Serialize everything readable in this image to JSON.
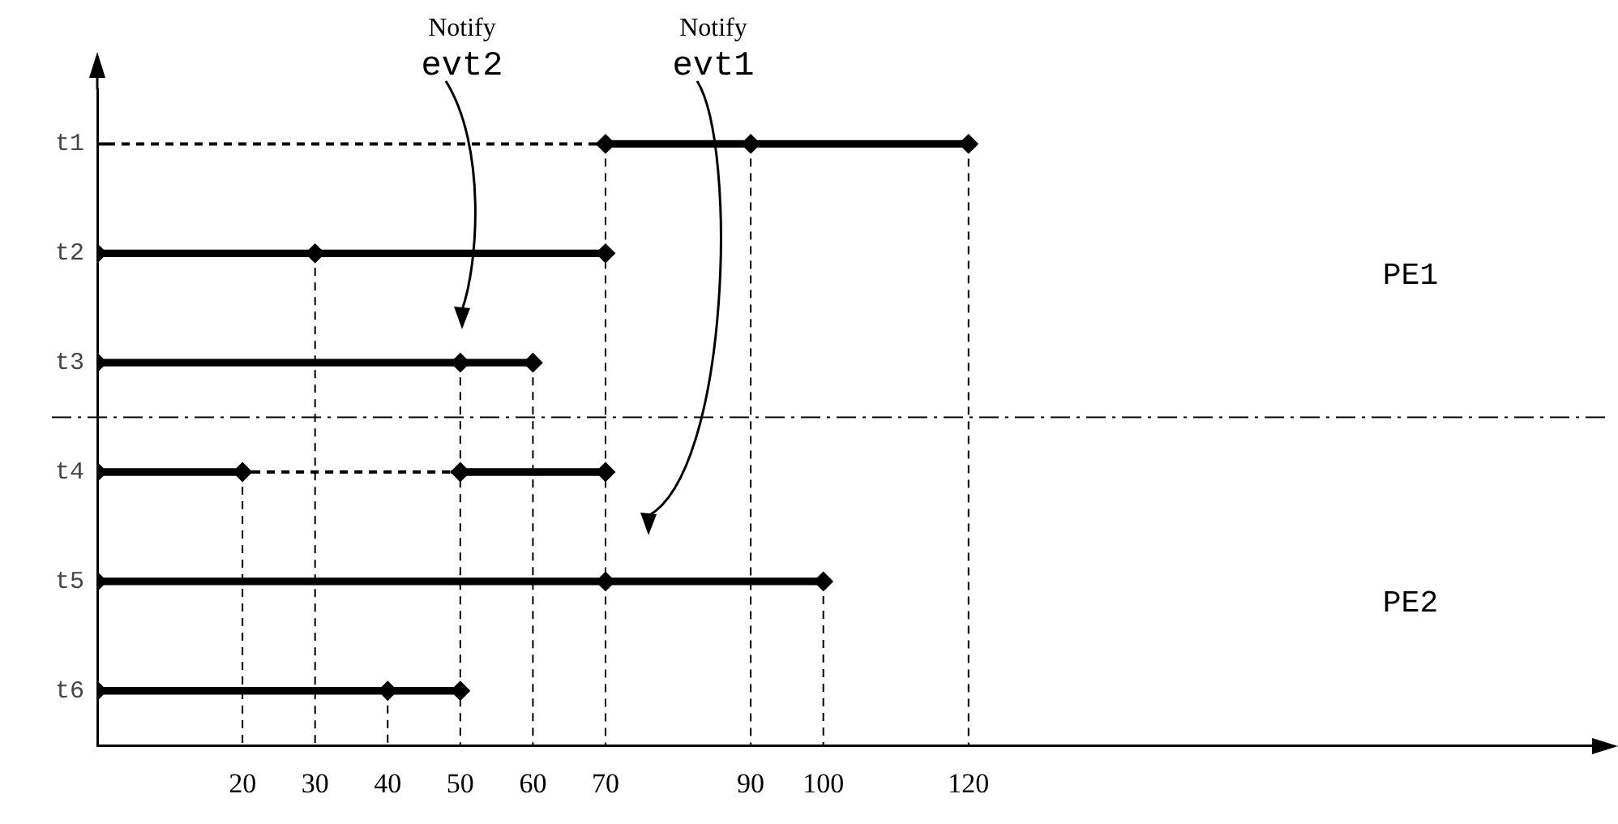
{
  "chart_data": {
    "type": "bar",
    "orientation": "horizontal",
    "categories": [
      "t1",
      "t2",
      "t3",
      "t4",
      "t5",
      "t6"
    ],
    "series": [
      {
        "type": "bar",
        "color": "#000000",
        "base": [
          70,
          0,
          0,
          0,
          0,
          0
        ],
        "values": [
          50,
          70,
          60,
          20,
          100,
          50
        ]
      },
      {
        "type": "bar",
        "color": "#000000",
        "base": [
          null,
          null,
          null,
          50,
          null,
          null
        ],
        "values": [
          null,
          null,
          null,
          20,
          null,
          null
        ]
      },
      {
        "type": "bar",
        "color": "#000000",
        "line_style": "dashed",
        "base": [
          0,
          null,
          null,
          20,
          null,
          null
        ],
        "values": [
          70,
          null,
          null,
          30,
          null,
          null
        ]
      },
      {
        "type": "scatter",
        "color": "#000000",
        "marker": "diamond",
        "values": [
          70,
          0,
          0,
          0,
          0,
          0
        ]
      },
      {
        "type": "scatter",
        "color": "#000000",
        "marker": "diamond",
        "values": [
          90,
          30,
          50,
          20,
          70,
          40
        ]
      },
      {
        "type": "scatter",
        "color": "#000000",
        "marker": "diamond",
        "values": [
          120,
          70,
          60,
          50,
          100,
          50
        ]
      },
      {
        "type": "scatter",
        "color": "#000000",
        "marker": "diamond",
        "values": [
          null,
          null,
          null,
          70,
          null,
          null
        ]
      }
    ],
    "ref_lines": [
      {
        "axis": "x",
        "value": 20,
        "line_style": "dashed"
      },
      {
        "axis": "x",
        "value": 30,
        "line_style": "dashed"
      },
      {
        "axis": "x",
        "value": 40,
        "line_style": "dashed"
      },
      {
        "axis": "x",
        "value": 50,
        "line_style": "dashed"
      },
      {
        "axis": "x",
        "value": 60,
        "line_style": "dashed"
      },
      {
        "axis": "x",
        "value": 70,
        "line_style": "dashed"
      },
      {
        "axis": "x",
        "value": 90,
        "line_style": "dashed"
      },
      {
        "axis": "x",
        "value": 100,
        "line_style": "dashed"
      },
      {
        "axis": "x",
        "value": 120,
        "line_style": "dashed"
      }
    ],
    "xlim": [
      0,
      208
    ],
    "xticks": [
      20,
      30,
      40,
      50,
      60,
      70,
      90,
      100,
      120
    ],
    "grid": false,
    "legend": false,
    "annotations": [
      "Notify\nevt2",
      "Notify\nevt1",
      "PE1",
      "PE2"
    ]
  }
}
